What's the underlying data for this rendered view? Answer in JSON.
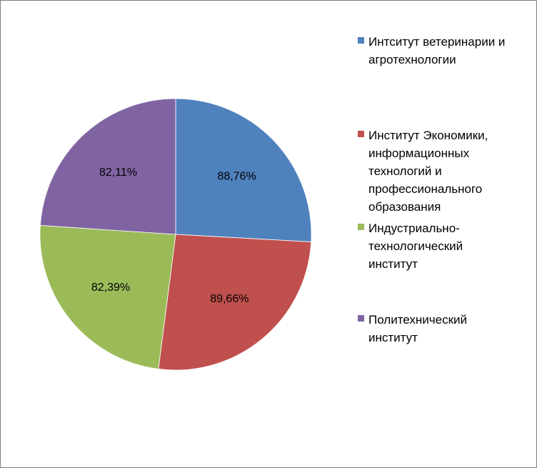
{
  "chart_data": {
    "type": "pie",
    "title": "",
    "categories": [
      "Интситут ветеринарии и агротехнологии",
      "Институт Экономики, информационных технологий и профессионального образования",
      "Индустриально-технологический институт",
      "Политехнический институт"
    ],
    "values": [
      88.76,
      89.66,
      82.39,
      82.11
    ],
    "labels": [
      "88,76%",
      "89,66%",
      "82,39%",
      "82,11%"
    ],
    "colors": [
      "#4F81BD",
      "#C0504D",
      "#9BBB59",
      "#8064A2"
    ],
    "legend_position": "right"
  },
  "legend": {
    "items": [
      {
        "label": "Интситут ветеринарии и агротехнологии",
        "color": "#4F81BD"
      },
      {
        "label": "Институт Экономики, информационных технологий и профессионального образования",
        "color": "#C0504D"
      },
      {
        "label": "Индустриально-технологический институт",
        "color": "#9BBB59"
      },
      {
        "label": "Политехнический институт",
        "color": "#8064A2"
      }
    ]
  }
}
